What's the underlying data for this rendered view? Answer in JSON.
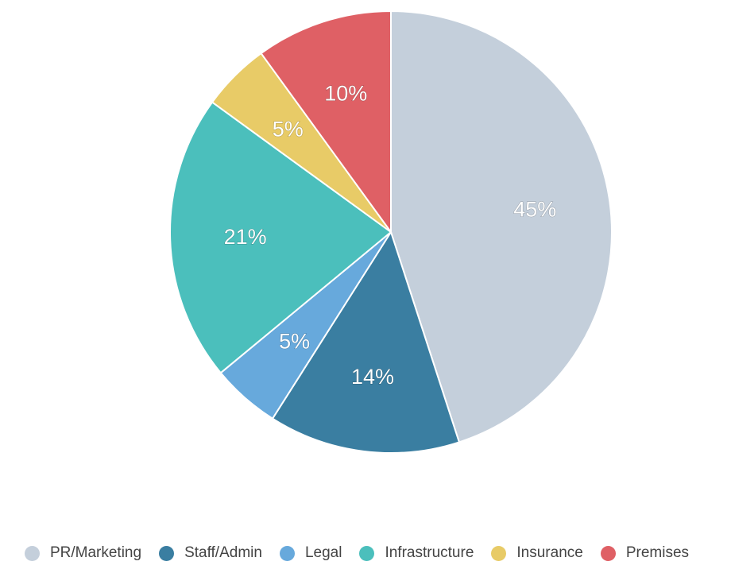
{
  "chart_data": {
    "type": "pie",
    "title": "",
    "legend_position": "bottom",
    "start_angle_deg": 0,
    "direction": "clockwise",
    "slices": [
      {
        "name": "PR/Marketing",
        "value": 45,
        "label": "45%",
        "color": "#c4cfdb"
      },
      {
        "name": "Staff/Admin",
        "value": 14,
        "label": "14%",
        "color": "#3a7ea1"
      },
      {
        "name": "Legal",
        "value": 5,
        "label": "5%",
        "color": "#67a9dc"
      },
      {
        "name": "Infrastructure",
        "value": 21,
        "label": "21%",
        "color": "#4bbfbc"
      },
      {
        "name": "Insurance",
        "value": 5,
        "label": "5%",
        "color": "#e8cb67"
      },
      {
        "name": "Premises",
        "value": 10,
        "label": "10%",
        "color": "#df6065"
      }
    ]
  }
}
